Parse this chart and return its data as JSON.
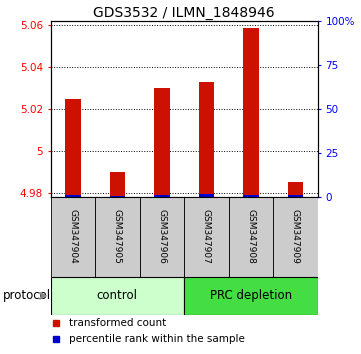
{
  "title": "GDS3532 / ILMN_1848946",
  "samples": [
    "GSM347904",
    "GSM347905",
    "GSM347906",
    "GSM347907",
    "GSM347908",
    "GSM347909"
  ],
  "transformed_counts": [
    5.025,
    4.99,
    5.03,
    5.033,
    5.059,
    4.985
  ],
  "percentile_ranks": [
    3,
    1,
    3,
    5,
    3,
    3
  ],
  "ylim_left": [
    4.978,
    5.062
  ],
  "ylim_right": [
    0,
    100
  ],
  "yticks_left": [
    4.98,
    5.0,
    5.02,
    5.04,
    5.06
  ],
  "yticks_right": [
    0,
    25,
    50,
    75,
    100
  ],
  "ytick_labels_left": [
    "4.98",
    "5",
    "5.02",
    "5.04",
    "5.06"
  ],
  "ytick_labels_right": [
    "0",
    "25",
    "50",
    "75",
    "100%"
  ],
  "groups": [
    {
      "label": "control",
      "indices": [
        0,
        1,
        2
      ],
      "color": "#ccffcc"
    },
    {
      "label": "PRC depletion",
      "indices": [
        3,
        4,
        5
      ],
      "color": "#44dd44"
    }
  ],
  "bar_color_red": "#cc1100",
  "bar_color_blue": "#0000cc",
  "bar_width": 0.35,
  "base_value": 4.978,
  "bg_color_label": "#cccccc",
  "bg_color_white": "#ffffff",
  "title_fontsize": 10,
  "tick_fontsize": 7.5,
  "label_fontsize": 8.5,
  "legend_fontsize": 7.5
}
